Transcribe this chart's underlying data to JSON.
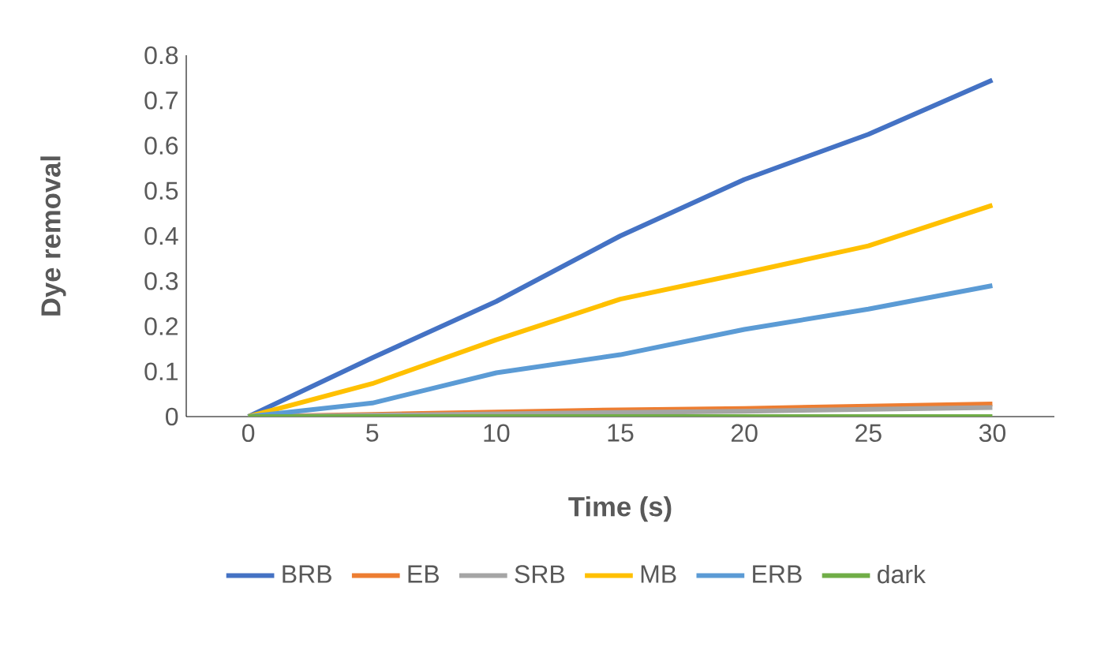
{
  "chart_data": {
    "type": "line",
    "xlabel": "Time (s)",
    "ylabel": "Dye removal",
    "categories": [
      "0",
      "5",
      "10",
      "15",
      "20",
      "25",
      "30"
    ],
    "series": [
      {
        "name": "BRB",
        "color": "#4472c4",
        "values": [
          0,
          0.13,
          0.255,
          0.4,
          0.525,
          0.625,
          0.745
        ]
      },
      {
        "name": "EB",
        "color": "#ed7d31",
        "values": [
          0,
          0.005,
          0.01,
          0.015,
          0.018,
          0.023,
          0.028
        ]
      },
      {
        "name": "SRB",
        "color": "#a5a5a5",
        "values": [
          0,
          0.003,
          0.006,
          0.009,
          0.012,
          0.016,
          0.02
        ]
      },
      {
        "name": "MB",
        "color": "#ffc000",
        "values": [
          0,
          0.073,
          0.17,
          0.26,
          0.318,
          0.378,
          0.468
        ]
      },
      {
        "name": "ERB",
        "color": "#5b9bd5",
        "values": [
          0,
          0.03,
          0.097,
          0.137,
          0.193,
          0.238,
          0.29
        ]
      },
      {
        "name": "dark",
        "color": "#70ad47",
        "values": [
          0,
          0,
          0,
          0,
          0,
          0,
          0
        ]
      }
    ],
    "ylim": [
      0,
      0.8
    ],
    "yticks": [
      0,
      0.1,
      0.2,
      0.3,
      0.4,
      0.5,
      0.6,
      0.7,
      0.8
    ],
    "grid": false,
    "legend": "bottom",
    "marker": "none",
    "line_style": "solid"
  }
}
